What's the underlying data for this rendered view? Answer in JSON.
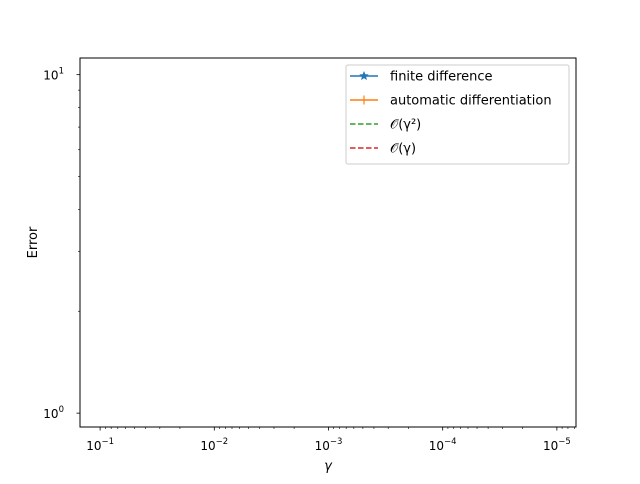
{
  "chart_data": {
    "type": "line",
    "title": "",
    "xlabel": "γ",
    "ylabel": "Error",
    "x_scale": "log",
    "y_scale": "log",
    "x_inverted": true,
    "xlim": [
      0.15,
      6.8e-06
    ],
    "ylim": [
      0.91,
      11.2
    ],
    "x_ticks": [
      {
        "value": 0.1,
        "base": "10",
        "exp": "−1"
      },
      {
        "value": 0.01,
        "base": "10",
        "exp": "−2"
      },
      {
        "value": 0.001,
        "base": "10",
        "exp": "−3"
      },
      {
        "value": 0.0001,
        "base": "10",
        "exp": "−4"
      },
      {
        "value": 1e-05,
        "base": "10",
        "exp": "−5"
      }
    ],
    "y_ticks": [
      {
        "value": 1,
        "base": "10",
        "exp": "0"
      },
      {
        "value": 10,
        "base": "10",
        "exp": "1"
      }
    ],
    "grid": false,
    "legend_position": "top-right",
    "series": [
      {
        "name": "finite difference",
        "color": "#1f77b4",
        "linestyle": "solid",
        "marker": "star",
        "x": [],
        "y": []
      },
      {
        "name": "automatic differentiation",
        "color": "#ff7f0e",
        "linestyle": "solid",
        "marker": "plus",
        "x": [],
        "y": []
      },
      {
        "name": "𝒪(γ²)",
        "color": "#2ca02c",
        "linestyle": "dashed",
        "marker": "none",
        "x": [],
        "y": []
      },
      {
        "name": "𝒪(γ)",
        "color": "#d62728",
        "linestyle": "dashed",
        "marker": "none",
        "x": [],
        "y": []
      }
    ]
  }
}
